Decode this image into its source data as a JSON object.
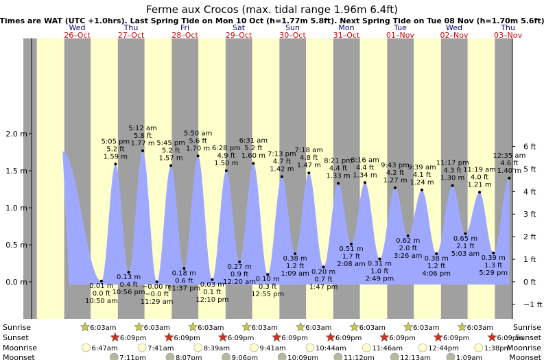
{
  "header": {
    "title": "Ferme aux Crocos (max. tidal range 1.96m 6.4ft)",
    "subtitle": "Times are WAT (UTC +1.0hrs). Last Spring Tide on Mon 10 Oct (h=1.77m 5.8ft). Next Spring Tide on Tue 08 Nov (h=1.70m 5.6ft)"
  },
  "colors": {
    "day": "#ffffcc",
    "night": "#a0a0a0",
    "water": "#9fa8ff",
    "day_label": "#000080",
    "date_label": "#cc0000",
    "star_sunrise": "#c8c84a",
    "star_sunset": "#cc3322",
    "moonrise": "#ffffcc",
    "moonset": "#b8b8a0"
  },
  "chart_data": {
    "type": "area",
    "title": "Ferme aux Crocos (max. tidal range 1.96m 6.4ft)",
    "x_unit": "days since Wed 26-Oct 00:00 (WAT)",
    "xlim": [
      -0.92,
      7.22
    ],
    "ylim": [
      -0.1,
      2.05
    ],
    "ylim_ft": [
      -1,
      6.73
    ],
    "y_left_ticks": [
      {
        "v": 2.0,
        "label": "2.0 m"
      },
      {
        "v": 1.5,
        "label": "1.5 m"
      },
      {
        "v": 1.0,
        "label": "1.0 m"
      },
      {
        "v": 0.5,
        "label": "0.5 m"
      },
      {
        "v": 0.0,
        "label": "0.0 m"
      }
    ],
    "y_right_ticks": [
      {
        "v": 6,
        "label": "6 ft"
      },
      {
        "v": 5,
        "label": "5 ft"
      },
      {
        "v": 4,
        "label": "4 ft"
      },
      {
        "v": 3,
        "label": "3 ft"
      },
      {
        "v": 2,
        "label": "2 ft"
      },
      {
        "v": 1,
        "label": "1 ft"
      },
      {
        "v": 0,
        "label": "0 ft"
      },
      {
        "v": -1,
        "label": "−1 ft"
      }
    ],
    "days": [
      {
        "name": "Wed",
        "date": "26–Oct",
        "x": 0
      },
      {
        "name": "Thu",
        "date": "27–Oct",
        "x": 1
      },
      {
        "name": "Fri",
        "date": "28–Oct",
        "x": 2
      },
      {
        "name": "Sat",
        "date": "29–Oct",
        "x": 3
      },
      {
        "name": "Sun",
        "date": "30–Oct",
        "x": 4
      },
      {
        "name": "Mon",
        "date": "31–Oct",
        "x": 5
      },
      {
        "name": "Tue",
        "date": "01–Nov",
        "x": 6
      },
      {
        "name": "Wed",
        "date": "02–Nov",
        "x": 7
      },
      {
        "name": "Thu",
        "date": "03–Nov",
        "x": 8
      }
    ],
    "daylight": [
      {
        "rise": -0.75,
        "set": -0.24
      },
      {
        "rise": 0.25,
        "set": 0.756
      },
      {
        "rise": 1.25,
        "set": 1.756
      },
      {
        "rise": 2.25,
        "set": 2.756
      },
      {
        "rise": 3.25,
        "set": 3.756
      },
      {
        "rise": 4.25,
        "set": 4.756
      },
      {
        "rise": 5.25,
        "set": 5.756
      },
      {
        "rise": 6.25,
        "set": 6.756
      },
      {
        "rise": 7.25,
        "set": 7.756
      }
    ],
    "curve_start": -0.15,
    "tides": [
      {
        "x": -0.27,
        "m": 1.76,
        "type": "high",
        "time": "",
        "ft": "",
        "m_label": "",
        "show": false
      },
      {
        "x": 0.451,
        "m": 0.01,
        "type": "low",
        "time": "10:50 am",
        "ft": "0.0 ft",
        "m_label": "0.01 m",
        "show": true
      },
      {
        "x": 0.712,
        "m": 1.59,
        "type": "high",
        "time": "5:05 pm",
        "ft": "5.2 ft",
        "m_label": "1.59 m",
        "show": true
      },
      {
        "x": 0.957,
        "m": 0.13,
        "type": "low",
        "time": "10:56 pm",
        "ft": "0.4 ft",
        "m_label": "0.13 m",
        "show": true
      },
      {
        "x": 1.217,
        "m": 1.77,
        "type": "high",
        "time": "5:12 am",
        "ft": "5.8 ft",
        "m_label": "1.77 m",
        "show": true
      },
      {
        "x": 1.479,
        "m": 0.0,
        "type": "low",
        "time": "11:29 am",
        "ft": "−0.0 ft",
        "m_label": "−0.00 m",
        "show": true
      },
      {
        "x": 1.74,
        "m": 1.57,
        "type": "high",
        "time": "5:45 pm",
        "ft": "5.2 ft",
        "m_label": "1.57 m",
        "show": true
      },
      {
        "x": 1.984,
        "m": 0.18,
        "type": "low",
        "time": "11:37 pm",
        "ft": "0.6 ft",
        "m_label": "0.18 m",
        "show": true
      },
      {
        "x": 2.243,
        "m": 1.7,
        "type": "high",
        "time": "5:50 am",
        "ft": "5.6 ft",
        "m_label": "1.70 m",
        "show": true
      },
      {
        "x": 2.507,
        "m": 0.03,
        "type": "low",
        "time": "12:10 pm",
        "ft": "0.1 ft",
        "m_label": "0.03 m",
        "show": true
      },
      {
        "x": 2.769,
        "m": 1.5,
        "type": "high",
        "time": "6:28 pm",
        "ft": "4.9 ft",
        "m_label": "1.50 m",
        "show": true
      },
      {
        "x": 3.014,
        "m": 0.27,
        "type": "low",
        "time": "12:20 am",
        "ft": "0.9 ft",
        "m_label": "0.27 m",
        "show": true
      },
      {
        "x": 3.272,
        "m": 1.6,
        "type": "high",
        "time": "6:31 am",
        "ft": "5.2 ft",
        "m_label": "1.60 m",
        "show": true
      },
      {
        "x": 3.538,
        "m": 0.1,
        "type": "low",
        "time": "12:55 pm",
        "ft": "0.3 ft",
        "m_label": "0.10 m",
        "show": true
      },
      {
        "x": 3.801,
        "m": 1.42,
        "type": "high",
        "time": "7:13 pm",
        "ft": "4.7 ft",
        "m_label": "1.42 m",
        "show": true
      },
      {
        "x": 4.047,
        "m": 0.38,
        "type": "low",
        "time": "1:09 am",
        "ft": "1.2 ft",
        "m_label": "0.38 m",
        "show": true
      },
      {
        "x": 4.303,
        "m": 1.47,
        "type": "high",
        "time": "7:18 am",
        "ft": "4.8 ft",
        "m_label": "1.47 m",
        "show": true
      },
      {
        "x": 4.574,
        "m": 0.2,
        "type": "low",
        "time": "1:47 pm",
        "ft": "0.7 ft",
        "m_label": "0.20 m",
        "show": true
      },
      {
        "x": 4.848,
        "m": 1.33,
        "type": "high",
        "time": "8:21 pm",
        "ft": "4.4 ft",
        "m_label": "1.33 m",
        "show": true
      },
      {
        "x": 5.089,
        "m": 0.51,
        "type": "low",
        "time": "2:08 am",
        "ft": "1.7 ft",
        "m_label": "0.51 m",
        "show": true
      },
      {
        "x": 5.344,
        "m": 1.34,
        "type": "high",
        "time": "8:16 am",
        "ft": "4.4 ft",
        "m_label": "1.34 m",
        "show": true
      },
      {
        "x": 5.617,
        "m": 0.31,
        "type": "low",
        "time": "2:49 pm",
        "ft": "1.0 ft",
        "m_label": "0.31 m",
        "show": true
      },
      {
        "x": 5.905,
        "m": 1.27,
        "type": "high",
        "time": "9:43 pm",
        "ft": "4.2 ft",
        "m_label": "1.27 m",
        "show": true
      },
      {
        "x": 6.143,
        "m": 0.62,
        "type": "low",
        "time": "3:26 am",
        "ft": "2.0 ft",
        "m_label": "0.62 m",
        "show": true
      },
      {
        "x": 6.402,
        "m": 1.24,
        "type": "high",
        "time": "9:39 am",
        "ft": "4.1 ft",
        "m_label": "1.24 m",
        "show": true
      },
      {
        "x": 6.671,
        "m": 0.38,
        "type": "low",
        "time": "4:06 pm",
        "ft": "1.2 ft",
        "m_label": "0.38 m",
        "show": true
      },
      {
        "x": 6.97,
        "m": 1.3,
        "type": "high",
        "time": "11:17 pm",
        "ft": "4.3 ft",
        "m_label": "1.30 m",
        "show": true
      },
      {
        "x": 7.21,
        "m": 0.65,
        "type": "low",
        "time": "5:03 am",
        "ft": "2.1 ft",
        "m_label": "0.65 m",
        "show": true
      },
      {
        "x": 7.472,
        "m": 1.21,
        "type": "high",
        "time": "11:19 am",
        "ft": "4.0 ft",
        "m_label": "1.21 m",
        "show": true
      },
      {
        "x": 7.729,
        "m": 0.39,
        "type": "low",
        "time": "5:29 pm",
        "ft": "1.3 ft",
        "m_label": "0.39 m",
        "show": true
      },
      {
        "x": 8.024,
        "m": 1.4,
        "type": "high",
        "time": "12:35 am",
        "ft": "4.6 ft",
        "m_label": "1.40 m",
        "show": true
      }
    ],
    "curve_end": 8.024
  },
  "rows": {
    "labels": {
      "sunrise": "Sunrise",
      "sunset": "Sunset",
      "moonrise": "Moonrise",
      "moonset": "Moonset"
    },
    "sunrise": [
      {
        "x": 0.25,
        "time": "6:03am"
      },
      {
        "x": 1.25,
        "time": "6:03am"
      },
      {
        "x": 2.25,
        "time": "6:03am"
      },
      {
        "x": 3.25,
        "time": "6:03am"
      },
      {
        "x": 4.25,
        "time": "6:03am"
      },
      {
        "x": 5.25,
        "time": "6:03am"
      },
      {
        "x": 6.25,
        "time": "6:03am"
      },
      {
        "x": 7.25,
        "time": "6:03am"
      }
    ],
    "sunset": [
      {
        "x": 0.756,
        "time": "6:09pm"
      },
      {
        "x": 1.756,
        "time": "6:09pm"
      },
      {
        "x": 2.756,
        "time": "6:09pm"
      },
      {
        "x": 3.756,
        "time": "6:09pm"
      },
      {
        "x": 4.756,
        "time": "6:09pm"
      },
      {
        "x": 5.756,
        "time": "6:09pm"
      },
      {
        "x": 6.756,
        "time": "6:09pm"
      },
      {
        "x": 7.756,
        "time": "6:09pm"
      }
    ],
    "moonrise": [
      {
        "x": 0.28,
        "time": "6:47am"
      },
      {
        "x": 1.32,
        "time": "7:41am"
      },
      {
        "x": 2.36,
        "time": "8:39am"
      },
      {
        "x": 3.4,
        "time": "9:41am"
      },
      {
        "x": 4.44,
        "time": "10:44am"
      },
      {
        "x": 5.49,
        "time": "11:46am"
      },
      {
        "x": 6.53,
        "time": "12:44pm"
      },
      {
        "x": 7.57,
        "time": "1:38pm"
      }
    ],
    "moonset": [
      {
        "x": 0.8,
        "time": "7:11pm"
      },
      {
        "x": 1.84,
        "time": "8:07pm"
      },
      {
        "x": 2.88,
        "time": "9:06pm"
      },
      {
        "x": 3.92,
        "time": "10:09pm"
      },
      {
        "x": 4.96,
        "time": "11:12pm"
      },
      {
        "x": 6.01,
        "time": "12:13am"
      },
      {
        "x": 7.05,
        "time": "1:09am"
      }
    ]
  }
}
